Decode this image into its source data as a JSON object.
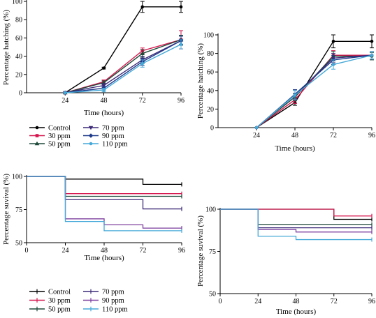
{
  "chart_data": [
    {
      "type": "line",
      "panel": "top-left",
      "xlabel": "Time (hours)",
      "ylabel": "Percentage hatching (%)",
      "x": [
        24,
        48,
        72,
        96
      ],
      "xlim": [
        0,
        96
      ],
      "ylim": [
        0,
        100
      ],
      "xticks": [
        24,
        48,
        72,
        96
      ],
      "yticks": [
        0,
        20,
        40,
        60,
        80,
        100
      ],
      "error_bars": true,
      "series": [
        {
          "name": "Control",
          "color": "#000000",
          "marker": "circle",
          "values": [
            0,
            27,
            94,
            94
          ],
          "errors": [
            0,
            1,
            6,
            6
          ]
        },
        {
          "name": "30 ppm",
          "color": "#d6174f",
          "marker": "square",
          "values": [
            0,
            12,
            46,
            58
          ],
          "errors": [
            0,
            2,
            3,
            10
          ]
        },
        {
          "name": "50 ppm",
          "color": "#1e4a3a",
          "marker": "triangle-up",
          "values": [
            0,
            11,
            43,
            58
          ],
          "errors": [
            0,
            2,
            4,
            5
          ]
        },
        {
          "name": "70 ppm",
          "color": "#3d2b78",
          "marker": "triangle-down",
          "values": [
            0,
            8,
            36,
            57
          ],
          "errors": [
            0,
            2,
            4,
            5
          ]
        },
        {
          "name": "90 ppm",
          "color": "#1f3a8a",
          "marker": "diamond",
          "values": [
            0,
            5,
            34,
            57
          ],
          "errors": [
            0,
            2,
            4,
            5
          ]
        },
        {
          "name": "110 ppm",
          "color": "#45a9d8",
          "marker": "circle",
          "values": [
            0,
            3,
            32,
            53
          ],
          "errors": [
            0,
            2,
            4,
            5
          ]
        }
      ]
    },
    {
      "type": "line",
      "panel": "top-right",
      "xlabel": "Time (hours)",
      "ylabel": "Percentage hatching (%)",
      "x": [
        24,
        48,
        72,
        96
      ],
      "xlim": [
        0,
        96
      ],
      "ylim": [
        0,
        100
      ],
      "xticks": [
        24,
        48,
        72,
        96
      ],
      "yticks": [
        0,
        20,
        40,
        60,
        80,
        100
      ],
      "error_bars": true,
      "series": [
        {
          "color": "#000000",
          "values": [
            0,
            27,
            93,
            93
          ],
          "errors": [
            0,
            3,
            7,
            7
          ]
        },
        {
          "color": "#d6174f",
          "values": [
            0,
            30,
            78,
            78
          ],
          "errors": [
            0,
            4,
            5,
            4
          ]
        },
        {
          "color": "#1e4a3a",
          "values": [
            0,
            33,
            77,
            77
          ],
          "errors": [
            0,
            4,
            5,
            4
          ]
        },
        {
          "color": "#3d2b78",
          "values": [
            0,
            35,
            75,
            78
          ],
          "errors": [
            0,
            5,
            5,
            4
          ]
        },
        {
          "color": "#1f3a8a",
          "values": [
            0,
            36,
            73,
            78
          ],
          "errors": [
            0,
            5,
            5,
            4
          ]
        },
        {
          "color": "#45a9d8",
          "values": [
            0,
            35,
            68,
            78
          ],
          "errors": [
            0,
            5,
            5,
            4
          ]
        }
      ]
    },
    {
      "type": "step",
      "panel": "bottom-left",
      "xlabel": "Time (hours)",
      "ylabel": "Percentage suvival (%)",
      "xlim": [
        0,
        96
      ],
      "ylim": [
        50,
        100
      ],
      "xticks": [
        0,
        24,
        48,
        72,
        96
      ],
      "yticks": [
        50,
        75,
        100
      ],
      "series": [
        {
          "name": "Control",
          "color": "#000000",
          "steps": [
            [
              0,
              100
            ],
            [
              24,
              98
            ],
            [
              72,
              94
            ]
          ]
        },
        {
          "name": "30 ppm",
          "color": "#d6174f",
          "steps": [
            [
              0,
              100
            ],
            [
              24,
              87
            ]
          ]
        },
        {
          "name": "50 ppm",
          "color": "#1e4a3a",
          "steps": [
            [
              0,
              100
            ],
            [
              24,
              85
            ]
          ]
        },
        {
          "name": "70 ppm",
          "color": "#3d2b78",
          "steps": [
            [
              0,
              100
            ],
            [
              24,
              82.5
            ],
            [
              72,
              75.5
            ]
          ]
        },
        {
          "name": "90 ppm",
          "color": "#7b3d9e",
          "steps": [
            [
              0,
              100
            ],
            [
              24,
              68
            ],
            [
              48,
              63.5
            ],
            [
              72,
              61
            ]
          ]
        },
        {
          "name": "110 ppm",
          "color": "#45a9d8",
          "steps": [
            [
              0,
              100
            ],
            [
              24,
              66
            ],
            [
              48,
              59
            ]
          ]
        }
      ]
    },
    {
      "type": "step",
      "panel": "bottom-right",
      "xlabel": "Time (hours)",
      "ylabel": "Percentage suvival (%)",
      "xlim": [
        0,
        96
      ],
      "ylim": [
        50,
        100
      ],
      "xticks": [
        0,
        24,
        48,
        72,
        96
      ],
      "yticks": [
        50,
        75,
        100
      ],
      "series": [
        {
          "color": "#000000",
          "steps": [
            [
              0,
              100
            ],
            [
              72,
              94
            ]
          ]
        },
        {
          "color": "#d6174f",
          "steps": [
            [
              0,
              100
            ],
            [
              72,
              96
            ]
          ]
        },
        {
          "color": "#1e4a3a",
          "steps": [
            [
              0,
              100
            ],
            [
              24,
              91
            ]
          ]
        },
        {
          "color": "#3d2b78",
          "steps": [
            [
              0,
              100
            ],
            [
              24,
              89
            ]
          ]
        },
        {
          "color": "#7b3d9e",
          "steps": [
            [
              0,
              100
            ],
            [
              24,
              88
            ],
            [
              48,
              86.5
            ]
          ]
        },
        {
          "color": "#45a9d8",
          "steps": [
            [
              0,
              100
            ],
            [
              24,
              84
            ],
            [
              48,
              82
            ]
          ]
        }
      ]
    }
  ],
  "legends": [
    {
      "panel": "top-left",
      "entries": [
        {
          "label": "Control",
          "color": "#000000",
          "marker": "circle"
        },
        {
          "label": "70 ppm",
          "color": "#3d2b78",
          "marker": "triangle-down"
        },
        {
          "label": "30 ppm",
          "color": "#d6174f",
          "marker": "square"
        },
        {
          "label": "90 ppm",
          "color": "#1f3a8a",
          "marker": "diamond"
        },
        {
          "label": "50 ppm",
          "color": "#1e4a3a",
          "marker": "triangle-up"
        },
        {
          "label": "110 ppm",
          "color": "#45a9d8",
          "marker": "circle"
        }
      ]
    },
    {
      "panel": "bottom-left",
      "entries": [
        {
          "label": "Control",
          "color": "#000000",
          "marker": "tick"
        },
        {
          "label": "70 ppm",
          "color": "#3d2b78",
          "marker": "tick"
        },
        {
          "label": "30 ppm",
          "color": "#d6174f",
          "marker": "tick"
        },
        {
          "label": "90 ppm",
          "color": "#7b3d9e",
          "marker": "tick"
        },
        {
          "label": "50 ppm",
          "color": "#1e4a3a",
          "marker": "tick"
        },
        {
          "label": "110 ppm",
          "color": "#45a9d8",
          "marker": "tick"
        }
      ]
    }
  ]
}
